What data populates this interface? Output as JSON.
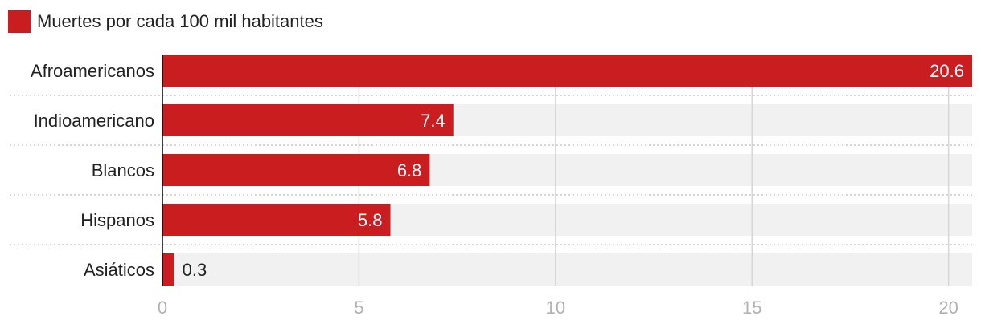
{
  "chart_data": {
    "type": "bar",
    "orientation": "horizontal",
    "categories": [
      "Afroamericanos",
      "Indioamericano",
      "Blancos",
      "Hispanos",
      "Asiáticos"
    ],
    "series": [
      {
        "name": "Muertes por cada 100 mil habitantes",
        "values": [
          20.6,
          7.4,
          6.8,
          5.8,
          0.3
        ]
      }
    ],
    "value_labels": [
      "20.6",
      "7.4",
      "6.8",
      "5.8",
      "0.3"
    ],
    "xlim": [
      0,
      20.6
    ],
    "xticks": [
      0,
      5,
      10,
      15,
      20
    ],
    "xtick_labels": [
      "0",
      "5",
      "10",
      "15",
      "20"
    ],
    "grid": true,
    "legend_position": "top-left",
    "colors": {
      "bar": "#c91d20",
      "track": "#f1f1f1",
      "grid": "#d6d6d6",
      "axis": "#000000",
      "separator": "#bdbdbd",
      "value_inside": "#ffffff",
      "value_outside": "#222222"
    }
  }
}
